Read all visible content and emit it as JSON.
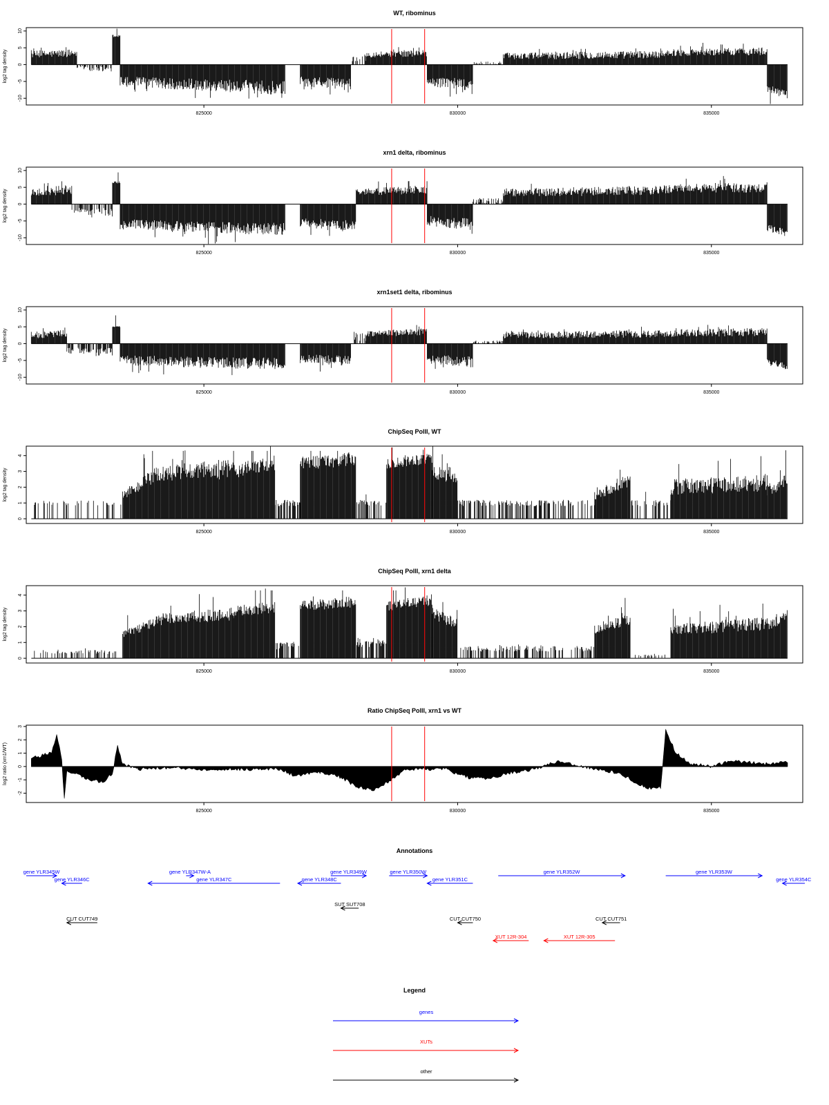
{
  "colors": {
    "gene": "#0000ff",
    "xut": "#ff0000",
    "other": "#000000",
    "marker": "#ff0000",
    "bars": "#000000"
  },
  "chart_data": [
    {
      "type": "bar",
      "title": "WT, ribominus",
      "ylabel": "log2 tag density",
      "xlim": [
        821500,
        836800
      ],
      "ylim": [
        -12,
        11
      ],
      "xticks": [
        "825000",
        "830000",
        "835000"
      ],
      "yticks": [
        "10",
        "5",
        "0",
        "-5",
        "-10"
      ],
      "markers": [
        828700,
        829350
      ],
      "segments": [
        {
          "x": [
            821600,
            822500
          ],
          "y": [
            3,
            3.5
          ],
          "cv": 0.35
        },
        {
          "x": [
            822500,
            823200
          ],
          "y": [
            -1,
            -1.5
          ],
          "cv": 0.6,
          "sparse": 0.5
        },
        {
          "x": [
            823200,
            823350
          ],
          "y": [
            8.5,
            8.5
          ],
          "cv": 0.05
        },
        {
          "x": [
            823350,
            826600
          ],
          "y": [
            -5,
            -7
          ],
          "cv": 0.3
        },
        {
          "x": [
            826900,
            827900
          ],
          "y": [
            -5,
            -6
          ],
          "cv": 0.3
        },
        {
          "x": [
            827900,
            828200
          ],
          "y": [
            2,
            2
          ],
          "cv": 0.5,
          "sparse": 0.5
        },
        {
          "x": [
            828200,
            829400
          ],
          "y": [
            3,
            3.5
          ],
          "cv": 0.3
        },
        {
          "x": [
            829400,
            830300
          ],
          "y": [
            -5,
            -6
          ],
          "cv": 0.3
        },
        {
          "x": [
            830300,
            830900
          ],
          "y": [
            0.5,
            0.5
          ],
          "cv": 0.8,
          "sparse": 0.4
        },
        {
          "x": [
            830900,
            834000
          ],
          "y": [
            2.5,
            3
          ],
          "cv": 0.4
        },
        {
          "x": [
            834000,
            836100
          ],
          "y": [
            3.5,
            4
          ],
          "cv": 0.3
        },
        {
          "x": [
            836100,
            836500
          ],
          "y": [
            -7,
            -9
          ],
          "cv": 0.15
        }
      ]
    },
    {
      "type": "bar",
      "title": "xrn1 delta, ribominus",
      "ylabel": "log2 tag density",
      "xlim": [
        821500,
        836800
      ],
      "ylim": [
        -12,
        11
      ],
      "xticks": [
        "825000",
        "830000",
        "835000"
      ],
      "yticks": [
        "10",
        "5",
        "0",
        "-5",
        "-10"
      ],
      "markers": [
        828700,
        829350
      ],
      "segments": [
        {
          "x": [
            821600,
            822400
          ],
          "y": [
            3.5,
            4
          ],
          "cv": 0.3
        },
        {
          "x": [
            822400,
            823200
          ],
          "y": [
            -2,
            -2.5
          ],
          "cv": 0.5,
          "sparse": 0.6
        },
        {
          "x": [
            823200,
            823350
          ],
          "y": [
            6.5,
            6.5
          ],
          "cv": 0.05
        },
        {
          "x": [
            823350,
            826600
          ],
          "y": [
            -6,
            -7.5
          ],
          "cv": 0.25
        },
        {
          "x": [
            826900,
            828000
          ],
          "y": [
            -5.5,
            -6.5
          ],
          "cv": 0.25
        },
        {
          "x": [
            828000,
            829400
          ],
          "y": [
            3.5,
            4.5
          ],
          "cv": 0.3
        },
        {
          "x": [
            829400,
            830300
          ],
          "y": [
            -5,
            -6
          ],
          "cv": 0.3
        },
        {
          "x": [
            830300,
            830900
          ],
          "y": [
            1,
            1
          ],
          "cv": 0.8,
          "sparse": 0.5
        },
        {
          "x": [
            830900,
            834000
          ],
          "y": [
            3.5,
            4
          ],
          "cv": 0.35
        },
        {
          "x": [
            834000,
            836100
          ],
          "y": [
            4.5,
            5
          ],
          "cv": 0.3
        },
        {
          "x": [
            836100,
            836500
          ],
          "y": [
            -7,
            -8.5
          ],
          "cv": 0.15
        }
      ]
    },
    {
      "type": "bar",
      "title": "xrn1set1 delta, ribominus",
      "ylabel": "log2 tag density",
      "xlim": [
        821500,
        836800
      ],
      "ylim": [
        -12,
        11
      ],
      "xticks": [
        "825000",
        "830000",
        "835000"
      ],
      "yticks": [
        "10",
        "5",
        "0",
        "-5",
        "-10"
      ],
      "markers": [
        828700,
        829350
      ],
      "segments": [
        {
          "x": [
            821600,
            822300
          ],
          "y": [
            2.5,
            3
          ],
          "cv": 0.4
        },
        {
          "x": [
            822300,
            823200
          ],
          "y": [
            -2,
            -2.5
          ],
          "cv": 0.5,
          "sparse": 0.6
        },
        {
          "x": [
            823200,
            823350
          ],
          "y": [
            5,
            5
          ],
          "cv": 0.05
        },
        {
          "x": [
            823350,
            826600
          ],
          "y": [
            -5,
            -6
          ],
          "cv": 0.3
        },
        {
          "x": [
            826900,
            827900
          ],
          "y": [
            -4.5,
            -5
          ],
          "cv": 0.3
        },
        {
          "x": [
            827900,
            828200
          ],
          "y": [
            2,
            2
          ],
          "cv": 0.6,
          "sparse": 0.5
        },
        {
          "x": [
            828200,
            829400
          ],
          "y": [
            3,
            3.5
          ],
          "cv": 0.3
        },
        {
          "x": [
            829400,
            830300
          ],
          "y": [
            -4.5,
            -5.5
          ],
          "cv": 0.3
        },
        {
          "x": [
            830300,
            830900
          ],
          "y": [
            0.5,
            0.5
          ],
          "cv": 0.8,
          "sparse": 0.4
        },
        {
          "x": [
            830900,
            834000
          ],
          "y": [
            2.5,
            3
          ],
          "cv": 0.4
        },
        {
          "x": [
            834000,
            836100
          ],
          "y": [
            3,
            3.5
          ],
          "cv": 0.35
        },
        {
          "x": [
            836100,
            836500
          ],
          "y": [
            -5,
            -7
          ],
          "cv": 0.15
        }
      ]
    },
    {
      "type": "bar",
      "title": "ChipSeq PolII, WT",
      "ylabel": "log2 tag density",
      "xlim": [
        821500,
        836800
      ],
      "ylim": [
        -0.3,
        4.6
      ],
      "xticks": [
        "825000",
        "830000",
        "835000"
      ],
      "yticks": [
        "4",
        "3",
        "2",
        "1",
        "0"
      ],
      "markers": [
        828700,
        829350
      ],
      "segments": [
        {
          "x": [
            821600,
            823400
          ],
          "y": [
            1,
            1
          ],
          "cv": 0.15,
          "sparse": 0.25
        },
        {
          "x": [
            823400,
            824200
          ],
          "y": [
            1.5,
            3
          ],
          "cv": 0.2
        },
        {
          "x": [
            824200,
            825600
          ],
          "y": [
            2.8,
            3.2
          ],
          "cv": 0.2
        },
        {
          "x": [
            825600,
            826400
          ],
          "y": [
            3,
            3.6
          ],
          "cv": 0.15
        },
        {
          "x": [
            826400,
            826900
          ],
          "y": [
            1,
            1
          ],
          "cv": 0.2,
          "sparse": 0.7
        },
        {
          "x": [
            826900,
            828000
          ],
          "y": [
            3.5,
            3.8
          ],
          "cv": 0.12
        },
        {
          "x": [
            828000,
            828600
          ],
          "y": [
            1,
            1
          ],
          "cv": 0.2,
          "sparse": 0.6
        },
        {
          "x": [
            828600,
            829500
          ],
          "y": [
            3.5,
            3.9
          ],
          "cv": 0.1
        },
        {
          "x": [
            829500,
            830000
          ],
          "y": [
            3,
            2.5
          ],
          "cv": 0.15
        },
        {
          "x": [
            830000,
            832700
          ],
          "y": [
            1,
            1
          ],
          "cv": 0.2,
          "sparse": 0.45
        },
        {
          "x": [
            832700,
            833400
          ],
          "y": [
            1.5,
            2.5
          ],
          "cv": 0.2
        },
        {
          "x": [
            833400,
            834200
          ],
          "y": [
            1,
            1
          ],
          "cv": 0.2,
          "sparse": 0.3
        },
        {
          "x": [
            834200,
            836100
          ],
          "y": [
            2,
            2.3
          ],
          "cv": 0.25
        },
        {
          "x": [
            836100,
            836500
          ],
          "y": [
            1.8,
            2.5
          ],
          "cv": 0.2
        }
      ]
    },
    {
      "type": "bar",
      "title": "ChipSeq PolII, xrn1 delta",
      "ylabel": "log2 tag density",
      "xlim": [
        821500,
        836800
      ],
      "ylim": [
        -0.3,
        4.6
      ],
      "xticks": [
        "825000",
        "830000",
        "835000"
      ],
      "yticks": [
        "4",
        "3",
        "2",
        "1",
        "0"
      ],
      "markers": [
        828700,
        829350
      ],
      "segments": [
        {
          "x": [
            821600,
            823400
          ],
          "y": [
            0.4,
            0.4
          ],
          "cv": 0.3,
          "sparse": 0.3
        },
        {
          "x": [
            823400,
            824200
          ],
          "y": [
            1.5,
            2.5
          ],
          "cv": 0.15
        },
        {
          "x": [
            824200,
            825600
          ],
          "y": [
            2.5,
            2.8
          ],
          "cv": 0.15
        },
        {
          "x": [
            825600,
            826400
          ],
          "y": [
            3,
            3.2
          ],
          "cv": 0.12
        },
        {
          "x": [
            826400,
            826900
          ],
          "y": [
            0.8,
            0.8
          ],
          "cv": 0.3,
          "sparse": 0.7
        },
        {
          "x": [
            826900,
            828000
          ],
          "y": [
            3.3,
            3.6
          ],
          "cv": 0.1
        },
        {
          "x": [
            828000,
            828600
          ],
          "y": [
            1,
            1
          ],
          "cv": 0.3,
          "sparse": 0.7
        },
        {
          "x": [
            828600,
            829500
          ],
          "y": [
            3.3,
            3.7
          ],
          "cv": 0.1
        },
        {
          "x": [
            829500,
            830000
          ],
          "y": [
            2.8,
            2.2
          ],
          "cv": 0.15
        },
        {
          "x": [
            830000,
            832700
          ],
          "y": [
            0.6,
            0.6
          ],
          "cv": 0.3,
          "sparse": 0.45
        },
        {
          "x": [
            832700,
            833400
          ],
          "y": [
            1.8,
            2.5
          ],
          "cv": 0.15
        },
        {
          "x": [
            833400,
            834200
          ],
          "y": [
            0.2,
            0.2
          ],
          "cv": 0.3,
          "sparse": 0.3
        },
        {
          "x": [
            834200,
            836100
          ],
          "y": [
            1.8,
            2.2
          ],
          "cv": 0.2
        },
        {
          "x": [
            836100,
            836500
          ],
          "y": [
            2,
            2.8
          ],
          "cv": 0.15
        }
      ]
    },
    {
      "type": "area",
      "title": "Ratio ChipSeq PolII, xrn1 vs WT",
      "ylabel": "log2 ratio (xrn1/WT)",
      "xlim": [
        821500,
        836800
      ],
      "ylim": [
        -2.7,
        3.1
      ],
      "xticks": [
        "825000",
        "830000",
        "835000"
      ],
      "yticks": [
        "3",
        "2",
        "1",
        "0",
        "-1",
        "-2"
      ],
      "markers": [
        828700,
        829350
      ],
      "points": [
        [
          821600,
          0.6
        ],
        [
          821900,
          0.9
        ],
        [
          822000,
          1.0
        ],
        [
          822100,
          2.4
        ],
        [
          822200,
          0.5
        ],
        [
          822250,
          -2.4
        ],
        [
          822300,
          -0.3
        ],
        [
          822600,
          -0.8
        ],
        [
          823000,
          -1.2
        ],
        [
          823200,
          -0.5
        ],
        [
          823300,
          1.6
        ],
        [
          823400,
          0.2
        ],
        [
          823700,
          -0.2
        ],
        [
          824200,
          -0.1
        ],
        [
          825000,
          -0.2
        ],
        [
          826000,
          -0.2
        ],
        [
          826500,
          -0.2
        ],
        [
          826800,
          -0.7
        ],
        [
          827300,
          -0.4
        ],
        [
          827700,
          -0.8
        ],
        [
          828000,
          -1.5
        ],
        [
          828300,
          -1.8
        ],
        [
          828600,
          -1.2
        ],
        [
          829000,
          -0.2
        ],
        [
          829500,
          -0.2
        ],
        [
          829800,
          -0.2
        ],
        [
          830000,
          -0.6
        ],
        [
          830300,
          -0.9
        ],
        [
          830600,
          -0.9
        ],
        [
          831000,
          -0.5
        ],
        [
          831500,
          -0.2
        ],
        [
          832000,
          0.4
        ],
        [
          832700,
          -0.2
        ],
        [
          833200,
          -0.5
        ],
        [
          833700,
          -1.6
        ],
        [
          834000,
          -1.6
        ],
        [
          834100,
          2.8
        ],
        [
          834300,
          1.0
        ],
        [
          834600,
          0.2
        ],
        [
          835000,
          0.0
        ],
        [
          835400,
          0.4
        ],
        [
          836000,
          0.2
        ],
        [
          836500,
          0.3
        ]
      ]
    }
  ],
  "annotations": {
    "title": "Annotations",
    "xlim": [
      821500,
      836800
    ],
    "items": [
      {
        "label": "gene YLR345W",
        "x1": 821000,
        "x2": 822100,
        "row": 0,
        "dir": "right",
        "kind": "gene"
      },
      {
        "label": "gene YLR346C",
        "x1": 822200,
        "x2": 822600,
        "row": 1,
        "dir": "left",
        "kind": "gene"
      },
      {
        "label": "gene YLR347W-A",
        "x1": 824650,
        "x2": 824800,
        "row": 0,
        "dir": "right",
        "kind": "gene"
      },
      {
        "label": "gene YLR347C",
        "x1": 823900,
        "x2": 826500,
        "row": 1,
        "dir": "left",
        "kind": "gene"
      },
      {
        "label": "gene YLR349W",
        "x1": 827500,
        "x2": 828200,
        "row": 0,
        "dir": "right",
        "kind": "gene"
      },
      {
        "label": "gene YLR348C",
        "x1": 826850,
        "x2": 827700,
        "row": 1,
        "dir": "left",
        "kind": "gene"
      },
      {
        "label": "gene YLR350W",
        "x1": 828650,
        "x2": 829400,
        "row": 0,
        "dir": "right",
        "kind": "gene"
      },
      {
        "label": "gene YLR351C",
        "x1": 829400,
        "x2": 830300,
        "row": 1,
        "dir": "left",
        "kind": "gene"
      },
      {
        "label": "gene YLR352W",
        "x1": 830800,
        "x2": 833300,
        "row": 0,
        "dir": "right",
        "kind": "gene"
      },
      {
        "label": "gene YLR353W",
        "x1": 834100,
        "x2": 836000,
        "row": 0,
        "dir": "right",
        "kind": "gene"
      },
      {
        "label": "gene YLR354C",
        "x1": 836400,
        "x2": 837000,
        "row": 1,
        "dir": "left",
        "kind": "gene"
      },
      {
        "label": "SUT SUT708",
        "x1": 827700,
        "x2": 828050,
        "row": 2,
        "dir": "left",
        "kind": "other"
      },
      {
        "label": "CUT CUT749",
        "x1": 822300,
        "x2": 822900,
        "row": 3,
        "dir": "left",
        "kind": "other"
      },
      {
        "label": "CUT CUT750",
        "x1": 830000,
        "x2": 830300,
        "row": 3,
        "dir": "left",
        "kind": "other"
      },
      {
        "label": "CUT CUT751",
        "x1": 832850,
        "x2": 833200,
        "row": 3,
        "dir": "left",
        "kind": "other"
      },
      {
        "label": "XUT 12R-304",
        "x1": 830700,
        "x2": 831400,
        "row": 4,
        "dir": "left",
        "kind": "xut"
      },
      {
        "label": "XUT 12R-305",
        "x1": 831700,
        "x2": 833100,
        "row": 4,
        "dir": "left",
        "kind": "xut"
      }
    ]
  },
  "legend": {
    "title": "Legend",
    "items": [
      {
        "label": "genes",
        "kind": "gene"
      },
      {
        "label": "XUTs",
        "kind": "xut"
      },
      {
        "label": "other",
        "kind": "other"
      }
    ]
  }
}
